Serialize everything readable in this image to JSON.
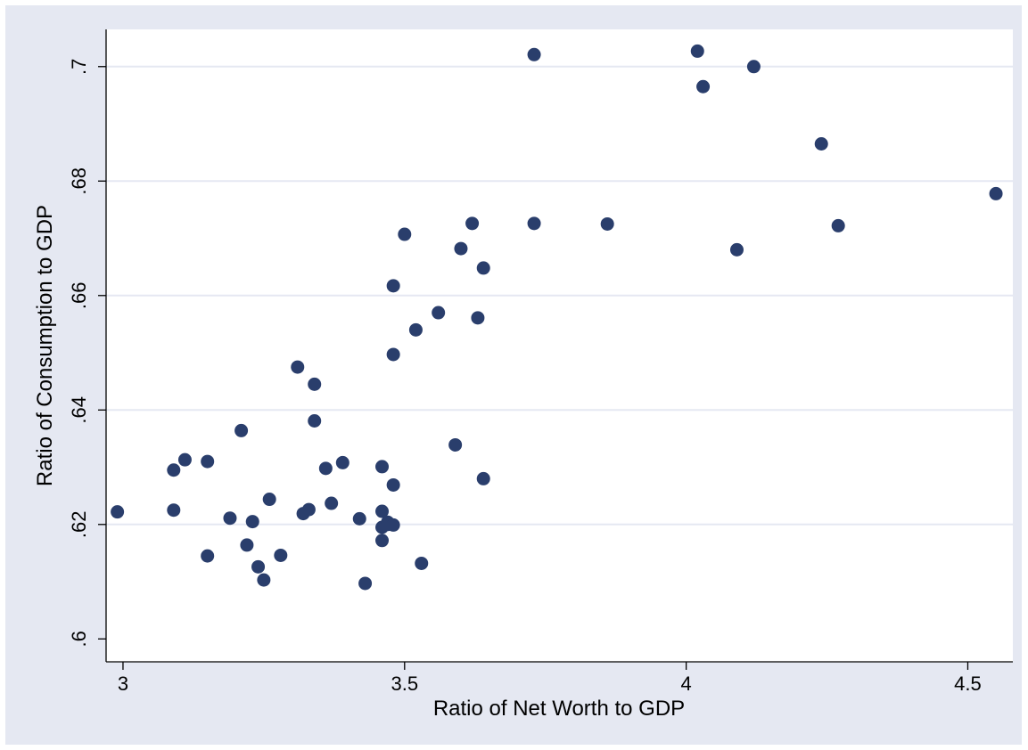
{
  "chart_data": {
    "type": "scatter",
    "title": "",
    "xlabel": "Ratio of Net Worth to GDP",
    "ylabel": "Ratio of Consumption to GDP",
    "xlim": [
      2.97,
      4.58
    ],
    "ylim": [
      0.596,
      0.7065
    ],
    "x_ticks": [
      3,
      3.5,
      4,
      4.5
    ],
    "x_tick_labels": [
      "3",
      "3.5",
      "4",
      "4.5"
    ],
    "y_ticks": [
      0.6,
      0.62,
      0.64,
      0.66,
      0.68,
      0.7
    ],
    "y_tick_labels": [
      ".6",
      ".62",
      ".64",
      ".66",
      ".68",
      ".7"
    ],
    "grid": "horizontal",
    "colors": {
      "marker": "#2a3e6c",
      "plot_bg": "#ffffff",
      "frame_bg": "#e5e8f2",
      "grid": "#e5e8f2"
    },
    "series": [
      {
        "points": [
          [
            2.99,
            0.6222
          ],
          [
            3.09,
            0.6295
          ],
          [
            3.09,
            0.6225
          ],
          [
            3.11,
            0.6313
          ],
          [
            3.15,
            0.631
          ],
          [
            3.15,
            0.6145
          ],
          [
            3.19,
            0.6211
          ],
          [
            3.21,
            0.6364
          ],
          [
            3.22,
            0.6164
          ],
          [
            3.23,
            0.6205
          ],
          [
            3.24,
            0.6126
          ],
          [
            3.25,
            0.6103
          ],
          [
            3.26,
            0.6244
          ],
          [
            3.28,
            0.6146
          ],
          [
            3.31,
            0.6475
          ],
          [
            3.32,
            0.6219
          ],
          [
            3.33,
            0.6226
          ],
          [
            3.34,
            0.6445
          ],
          [
            3.34,
            0.6381
          ],
          [
            3.36,
            0.6298
          ],
          [
            3.37,
            0.6237
          ],
          [
            3.39,
            0.6308
          ],
          [
            3.42,
            0.621
          ],
          [
            3.43,
            0.6097
          ],
          [
            3.46,
            0.6223
          ],
          [
            3.46,
            0.6301
          ],
          [
            3.46,
            0.6172
          ],
          [
            3.46,
            0.6195
          ],
          [
            3.47,
            0.6204
          ],
          [
            3.47,
            0.62
          ],
          [
            3.48,
            0.6199
          ],
          [
            3.48,
            0.6269
          ],
          [
            3.48,
            0.6497
          ],
          [
            3.48,
            0.6617
          ],
          [
            3.5,
            0.6707
          ],
          [
            3.52,
            0.654
          ],
          [
            3.53,
            0.6132
          ],
          [
            3.56,
            0.657
          ],
          [
            3.59,
            0.6339
          ],
          [
            3.6,
            0.6682
          ],
          [
            3.62,
            0.6726
          ],
          [
            3.63,
            0.6561
          ],
          [
            3.64,
            0.6648
          ],
          [
            3.64,
            0.628
          ],
          [
            3.73,
            0.7021
          ],
          [
            3.73,
            0.6726
          ],
          [
            3.86,
            0.6725
          ],
          [
            4.02,
            0.7027
          ],
          [
            4.03,
            0.6965
          ],
          [
            4.09,
            0.668
          ],
          [
            4.12,
            0.7
          ],
          [
            4.24,
            0.6865
          ],
          [
            4.27,
            0.6722
          ],
          [
            4.55,
            0.6778
          ]
        ]
      }
    ]
  }
}
